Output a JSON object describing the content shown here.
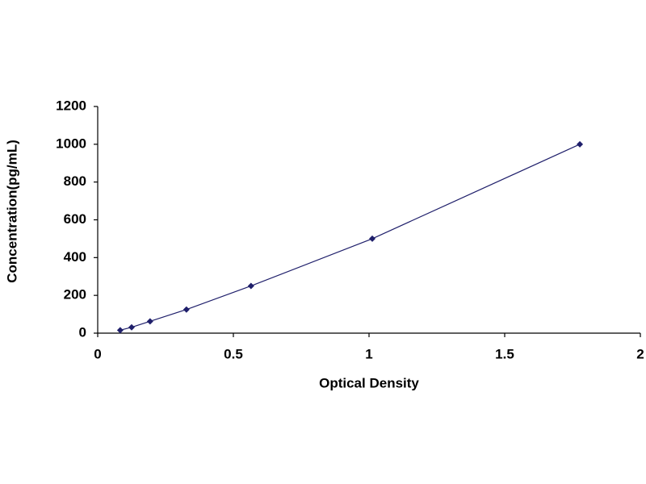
{
  "chart_data": {
    "type": "scatter",
    "x_label": "Optical Density",
    "y_label": "Concentration(pg/mL)",
    "series": [
      {
        "color": "#1f1f6b",
        "x": [
          0.083,
          0.125,
          0.193,
          0.327,
          0.565,
          1.012,
          1.777
        ],
        "values": [
          15.6,
          31.2,
          62.5,
          125,
          250,
          500,
          1000
        ]
      }
    ],
    "xlim": [
      0,
      2
    ],
    "xticks": [
      0,
      0.5,
      1,
      1.5,
      2
    ],
    "ylim": [
      0,
      1200
    ],
    "yticks": [
      0,
      200,
      400,
      600,
      800,
      1000,
      1200
    ],
    "line": true,
    "grid": false
  }
}
